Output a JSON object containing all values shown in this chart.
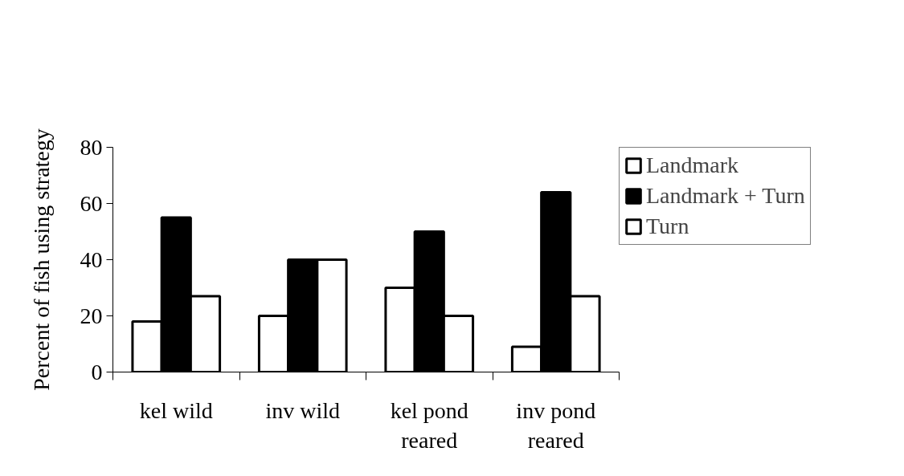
{
  "chart_data": {
    "type": "bar",
    "ylabel": "Percent of fish using strategy",
    "categories": [
      "kel wild",
      "inv wild",
      "kel pond reared",
      "inv pond reared"
    ],
    "series": [
      {
        "name": "Landmark",
        "color": "#ffffff",
        "values": [
          18,
          20,
          30,
          9
        ]
      },
      {
        "name": "Landmark + Turn",
        "color": "#000000",
        "values": [
          55,
          40,
          50,
          64
        ]
      },
      {
        "name": "Turn",
        "color": "#ffffff",
        "values": [
          27,
          40,
          20,
          27
        ]
      }
    ],
    "ylim": [
      0,
      80
    ],
    "yticks": [
      0,
      20,
      40,
      60,
      80
    ],
    "grid": false,
    "legend": "top right"
  }
}
